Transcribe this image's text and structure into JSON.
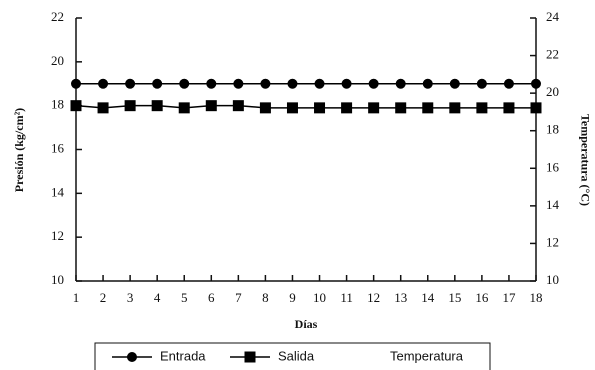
{
  "chart_data": {
    "type": "line",
    "xlabel": "Días",
    "ylabel": "Presión (kg/cm²)",
    "y2label": "Temperatura (°C)",
    "x": [
      1,
      2,
      3,
      4,
      5,
      6,
      7,
      8,
      9,
      10,
      11,
      12,
      13,
      14,
      15,
      16,
      17,
      18
    ],
    "xlim": [
      1,
      18
    ],
    "ylim": [
      10,
      22
    ],
    "yticks": [
      10,
      12,
      14,
      16,
      18,
      20,
      22
    ],
    "y2lim": [
      10,
      24
    ],
    "y2ticks": [
      10,
      12,
      14,
      16,
      18,
      20,
      22,
      24
    ],
    "series": [
      {
        "name": "Entrada",
        "color": "#000000",
        "marker": "circle",
        "values": [
          19,
          19,
          19,
          19,
          19,
          19,
          19,
          19,
          19,
          19,
          19,
          19,
          19,
          19,
          19,
          19,
          19,
          19
        ]
      },
      {
        "name": "Salida",
        "color": "#000000",
        "marker": "square",
        "values": [
          18,
          17.9,
          18,
          18,
          17.9,
          18,
          18,
          17.9,
          17.9,
          17.9,
          17.9,
          17.9,
          17.9,
          17.9,
          17.9,
          17.9,
          17.9,
          17.9
        ]
      },
      {
        "name": "Temperatura",
        "axis": "y2",
        "values": [
          null,
          null,
          null,
          null,
          null,
          null,
          null,
          null,
          null,
          null,
          null,
          null,
          null,
          null,
          null,
          null,
          null,
          null
        ]
      }
    ],
    "legend": "bottom"
  }
}
